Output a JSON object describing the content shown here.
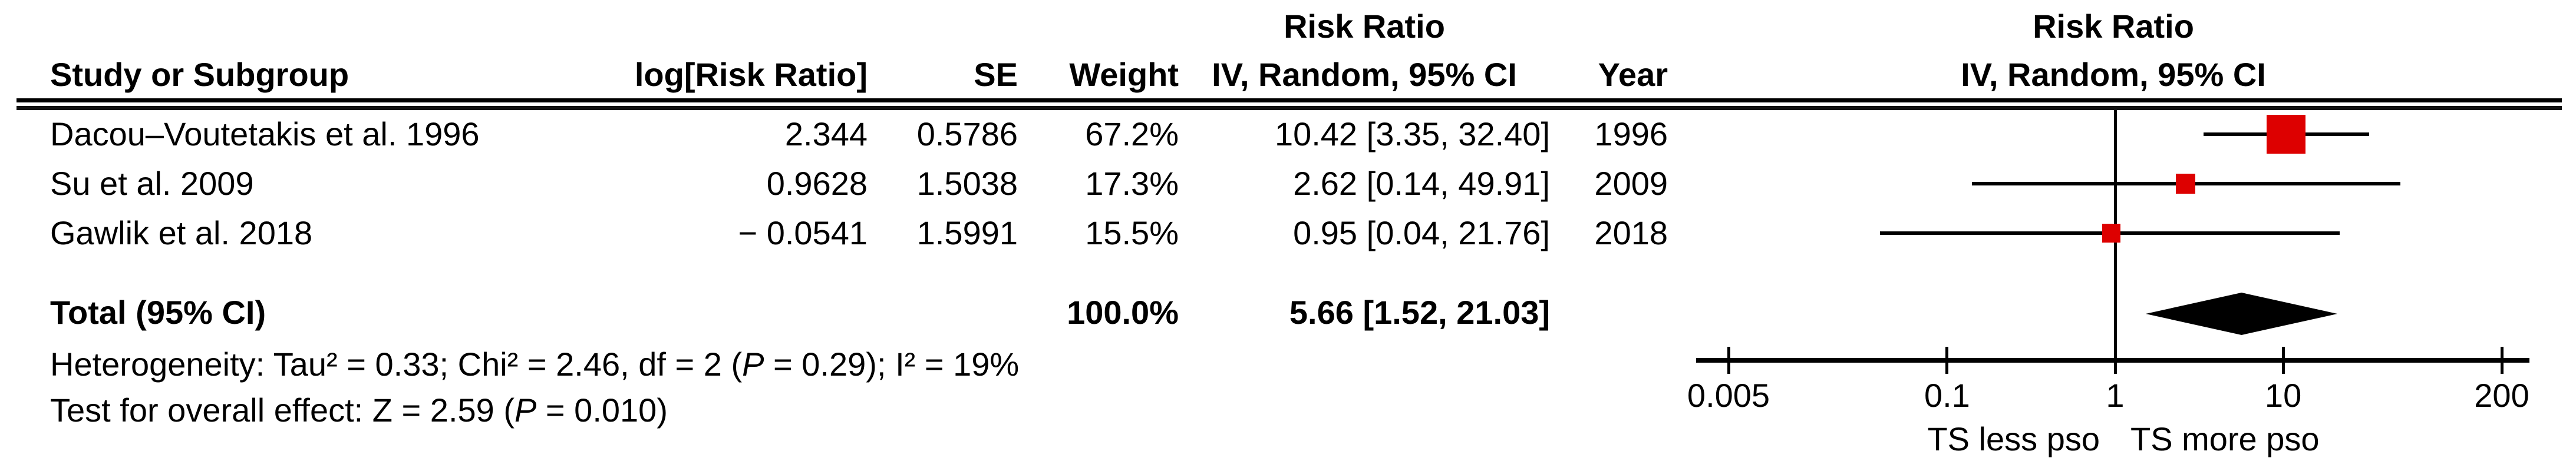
{
  "plot": {
    "title": "Risk Ratio",
    "subtitle": "IV, Random, 95% CI"
  },
  "table": {
    "headers": {
      "study": "Study or Subgroup",
      "log_rr": "log[Risk Ratio]",
      "se": "SE",
      "weight": "Weight",
      "effect": "Risk Ratio",
      "ci": "IV, Random, 95% CI",
      "year": "Year"
    },
    "rows": [
      {
        "study": "Dacou–Voutetakis et al. 1996",
        "log_rr": "2.344",
        "se": "0.5786",
        "weight": "67.2%",
        "ci": "10.42 [3.35, 32.40]",
        "year": "1996"
      },
      {
        "study": "Su et al. 2009",
        "log_rr": "0.9628",
        "se": "1.5038",
        "weight": "17.3%",
        "ci": "2.62 [0.14, 49.91]",
        "year": "2009"
      },
      {
        "study": "Gawlik et al. 2018",
        "log_rr": "− 0.0541",
        "se": "1.5991",
        "weight": "15.5%",
        "ci": "0.95 [0.04, 21.76]",
        "year": "2018"
      }
    ],
    "total": {
      "label": "Total (95% CI)",
      "weight": "100.0%",
      "ci": "5.66 [1.52, 21.03]"
    }
  },
  "footnotes": {
    "heterogeneity_prefix": "Heterogeneity: Tau² = 0.33; Chi² = 2.46, df = 2 (",
    "heterogeneity_p": "P",
    "heterogeneity_suffix": " = 0.29); I² = 19%",
    "overall_prefix": "Test for overall effect: Z = 2.59 (",
    "overall_p": "P",
    "overall_suffix": " = 0.010)"
  },
  "chart_data": {
    "type": "forest-plot",
    "effect_measure": "Risk Ratio",
    "method": "IV, Random, 95% CI",
    "x_scale": "log",
    "axis": {
      "ticks": [
        0.005,
        0.1,
        1,
        10,
        200
      ],
      "tick_labels": [
        "0.005",
        "0.1",
        "1",
        "10",
        "200"
      ],
      "no_effect_value": 1,
      "left_direction_label": "TS less pso",
      "right_direction_label": "TS more pso"
    },
    "studies": [
      {
        "name": "Dacou–Voutetakis et al. 1996",
        "rr": 10.42,
        "ci_low": 3.35,
        "ci_high": 32.4,
        "weight_pct": 67.2,
        "year": 1996
      },
      {
        "name": "Su et al. 2009",
        "rr": 2.62,
        "ci_low": 0.14,
        "ci_high": 49.91,
        "weight_pct": 17.3,
        "year": 2009
      },
      {
        "name": "Gawlik et al. 2018",
        "rr": 0.95,
        "ci_low": 0.04,
        "ci_high": 21.76,
        "weight_pct": 15.5,
        "year": 2018
      }
    ],
    "total": {
      "rr": 5.66,
      "ci_low": 1.52,
      "ci_high": 21.03,
      "weight_pct": 100.0
    },
    "heterogeneity": {
      "tau2": 0.33,
      "chi2": 2.46,
      "df": 2,
      "p": 0.29,
      "i2_pct": 19
    },
    "overall_effect": {
      "z": 2.59,
      "p": 0.01
    },
    "marker_color": "#dd0000",
    "diamond_color": "#000000",
    "line_color": "#000000"
  }
}
